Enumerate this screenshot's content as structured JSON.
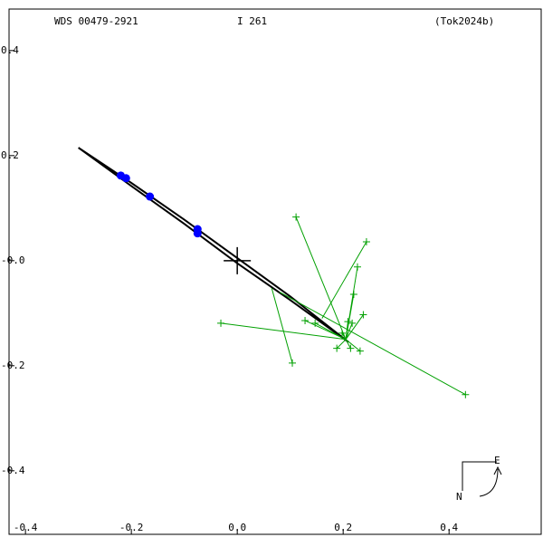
{
  "chart_data": {
    "type": "orbit",
    "title": "WDS 00479-2921",
    "subtitle": "I   261",
    "reference": "(Tok2024b)",
    "compass": {
      "east": "E",
      "north": "N"
    },
    "xlim": [
      -0.431,
      0.574
    ],
    "ylim": [
      -0.521,
      0.479
    ],
    "xticks": [
      -0.4,
      -0.2,
      {
        "value": 0,
        "label": "0.0"
      },
      0.2,
      0.4
    ],
    "yticks": [
      -0.4,
      -0.2,
      {
        "value": 0,
        "label": "-0.0"
      },
      0.2,
      0.4
    ],
    "orbit": {
      "color": "#000000",
      "x": [
        -0.3,
        -0.2,
        -0.1,
        0,
        0.1,
        0.21,
        0.1,
        0,
        -0.1,
        -0.2,
        -0.3
      ],
      "y": [
        0.215,
        0.148,
        0.078,
        0.005,
        -0.068,
        -0.155,
        -0.075,
        -0.005,
        0.07,
        0.142,
        0.215
      ]
    },
    "positions": {
      "color": "#0000ff",
      "x": [
        -0.22,
        -0.21,
        -0.165,
        -0.075,
        -0.075
      ],
      "y": [
        0.162,
        0.157,
        0.122,
        0.06,
        0.052
      ]
    },
    "observations": {
      "color": "#00a000",
      "x": [
        0.111,
        0.244,
        0.227,
        0.22,
        0.238,
        0.128,
        0.147,
        0.209,
        0.217,
        0.198,
        -0.031,
        0.188,
        0.214,
        0.232,
        0.104,
        0.431
      ],
      "y": [
        0.083,
        0.036,
        -0.012,
        -0.064,
        -0.103,
        -0.114,
        -0.119,
        -0.116,
        -0.119,
        -0.138,
        -0.119,
        -0.167,
        -0.167,
        -0.172,
        -0.195,
        -0.255
      ],
      "px": [
        0.205,
        0.16,
        0.205,
        0.205,
        0.205,
        0.205,
        0.205,
        0.205,
        0.205,
        0.205,
        0.205,
        0.205,
        0.205,
        0.205,
        0.065,
        0.08
      ],
      "py": [
        -0.15,
        -0.11,
        -0.15,
        -0.15,
        -0.15,
        -0.15,
        -0.15,
        -0.15,
        -0.15,
        -0.15,
        -0.15,
        -0.15,
        -0.15,
        -0.15,
        -0.052,
        -0.06
      ]
    }
  }
}
